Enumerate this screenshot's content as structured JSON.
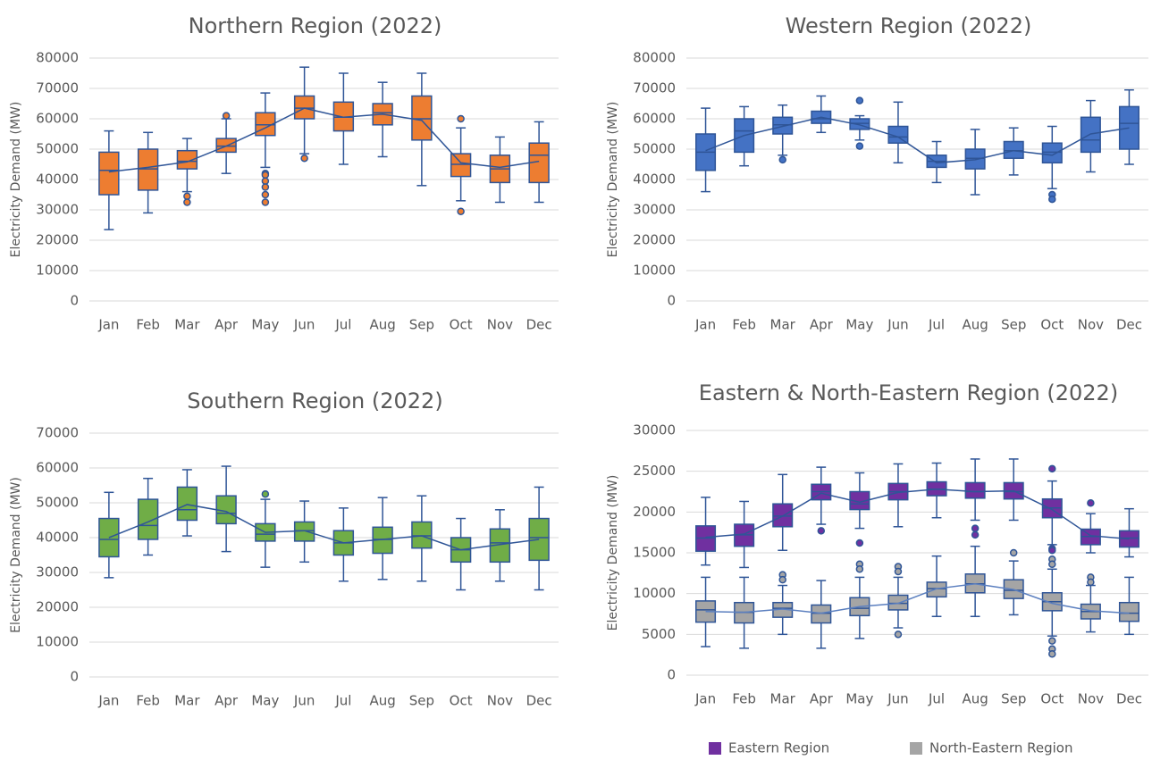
{
  "chart_data": [
    {
      "type": "box",
      "title": "Northern Region (2022)",
      "y_label": "Electricity Demand (MW)",
      "categories": [
        "Jan",
        "Feb",
        "Mar",
        "Apr",
        "May",
        "Jun",
        "Jul",
        "Aug",
        "Sep",
        "Oct",
        "Nov",
        "Dec"
      ],
      "ylim": [
        0,
        80000
      ],
      "yticks": [
        0,
        10000,
        20000,
        30000,
        40000,
        50000,
        60000,
        70000,
        80000
      ],
      "grid": true,
      "series": [
        {
          "color": "#ED7D31",
          "line_color": "#2F5597",
          "min": [
            23500,
            29000,
            36000,
            42000,
            44000,
            48500,
            45000,
            47500,
            38000,
            33000,
            32500,
            32500
          ],
          "q1": [
            35000,
            36500,
            43500,
            49000,
            54500,
            60000,
            56000,
            58000,
            53000,
            41000,
            39000,
            39000
          ],
          "median": [
            43000,
            43500,
            46000,
            51000,
            58000,
            63500,
            60500,
            62000,
            60000,
            45000,
            43500,
            48000
          ],
          "q3": [
            49000,
            50000,
            49500,
            53500,
            62000,
            67500,
            65500,
            65000,
            67500,
            48500,
            48000,
            52000
          ],
          "max": [
            56000,
            55500,
            53500,
            60000,
            68500,
            77000,
            75000,
            72000,
            75000,
            57000,
            54000,
            59000
          ],
          "mean": [
            42500,
            44000,
            45800,
            51000,
            57000,
            63500,
            60500,
            61500,
            59500,
            45500,
            44000,
            46000
          ],
          "outliers": [
            [],
            [],
            [
              34500,
              32500
            ],
            [
              61000
            ],
            [
              42000,
              41500,
              39500,
              37500,
              35000,
              32500
            ],
            [
              47000
            ],
            [],
            [],
            [],
            [
              60000,
              29500
            ],
            [],
            []
          ]
        }
      ]
    },
    {
      "type": "box",
      "title": "Western Region (2022)",
      "y_label": "Electricity Demand (MW)",
      "categories": [
        "Jan",
        "Feb",
        "Mar",
        "Apr",
        "May",
        "Jun",
        "Jul",
        "Aug",
        "Sep",
        "Oct",
        "Nov",
        "Dec"
      ],
      "ylim": [
        0,
        80000
      ],
      "yticks": [
        0,
        10000,
        20000,
        30000,
        40000,
        50000,
        60000,
        70000,
        80000
      ],
      "grid": true,
      "series": [
        {
          "color": "#4472C4",
          "line_color": "#2F5597",
          "min": [
            36000,
            44500,
            48000,
            55500,
            53000,
            45500,
            39000,
            35000,
            41500,
            37000,
            42500,
            45000
          ],
          "q1": [
            43000,
            49000,
            55000,
            58500,
            56500,
            52000,
            44000,
            43500,
            47000,
            45500,
            49000,
            50000
          ],
          "median": [
            49000,
            56000,
            58000,
            60000,
            58500,
            54000,
            46000,
            47000,
            49500,
            49000,
            53000,
            58500
          ],
          "q3": [
            55000,
            60000,
            60500,
            62500,
            60000,
            57500,
            48000,
            50000,
            52500,
            52000,
            60500,
            64000
          ],
          "max": [
            63500,
            64000,
            64500,
            67500,
            61000,
            65500,
            52500,
            56500,
            57000,
            57500,
            66000,
            69500
          ],
          "mean": [
            49500,
            54500,
            57500,
            60500,
            58000,
            54000,
            45500,
            46500,
            49500,
            48000,
            55000,
            57000
          ],
          "outliers": [
            [],
            [],
            [
              46500
            ],
            [],
            [
              66000,
              51000
            ],
            [],
            [],
            [],
            [],
            [
              35000,
              33500
            ],
            [],
            []
          ]
        }
      ]
    },
    {
      "type": "box",
      "title": "Southern Region (2022)",
      "y_label": "Electricity Demand (MW)",
      "categories": [
        "Jan",
        "Feb",
        "Mar",
        "Apr",
        "May",
        "Jun",
        "Jul",
        "Aug",
        "Sep",
        "Oct",
        "Nov",
        "Dec"
      ],
      "ylim": [
        0,
        70000
      ],
      "yticks": [
        0,
        10000,
        20000,
        30000,
        40000,
        50000,
        60000,
        70000
      ],
      "grid": true,
      "series": [
        {
          "color": "#70AD47",
          "line_color": "#2F5597",
          "min": [
            28500,
            35000,
            40500,
            36000,
            31500,
            33000,
            27500,
            28000,
            27500,
            25000,
            27500,
            25000
          ],
          "q1": [
            34500,
            39500,
            45000,
            44000,
            39000,
            39000,
            35000,
            35500,
            37000,
            33000,
            33000,
            33500
          ],
          "median": [
            39500,
            43500,
            48000,
            47000,
            41000,
            42000,
            38500,
            39500,
            40500,
            36500,
            38500,
            40000
          ],
          "q3": [
            45500,
            51000,
            54500,
            52000,
            44000,
            44500,
            42000,
            43000,
            44500,
            40000,
            42500,
            45500
          ],
          "max": [
            53000,
            57000,
            59500,
            60500,
            51000,
            50500,
            48500,
            51500,
            52000,
            45500,
            48000,
            54500
          ],
          "mean": [
            40000,
            44500,
            49500,
            47500,
            41500,
            42000,
            38500,
            39500,
            40500,
            36500,
            38000,
            39500
          ],
          "outliers": [
            [],
            [],
            [],
            [],
            [
              52500
            ],
            [],
            [],
            [],
            [],
            [],
            [],
            []
          ]
        }
      ]
    },
    {
      "type": "box",
      "title": "Eastern & North-Eastern Region (2022)",
      "y_label": "Electricity Demand (MW)",
      "categories": [
        "Jan",
        "Feb",
        "Mar",
        "Apr",
        "May",
        "Jun",
        "Jul",
        "Aug",
        "Sep",
        "Oct",
        "Nov",
        "Dec"
      ],
      "ylim": [
        0,
        30000
      ],
      "yticks": [
        0,
        5000,
        10000,
        15000,
        20000,
        25000,
        30000
      ],
      "grid": true,
      "legend": "bottom",
      "series": [
        {
          "name": "Eastern Region",
          "color": "#7030A0",
          "line_color": "#2F5597",
          "min": [
            13500,
            13200,
            15300,
            18500,
            18000,
            18200,
            19300,
            19000,
            19000,
            16000,
            15000,
            14500
          ],
          "q1": [
            15200,
            15800,
            18200,
            21500,
            20300,
            21500,
            22000,
            21700,
            21600,
            19300,
            16000,
            15700
          ],
          "median": [
            16800,
            17200,
            19500,
            22500,
            21000,
            22500,
            22800,
            22500,
            22500,
            20500,
            17000,
            16800
          ],
          "q3": [
            18300,
            18500,
            21000,
            23400,
            22500,
            23500,
            23700,
            23600,
            23600,
            21600,
            17900,
            17700
          ],
          "max": [
            21800,
            21300,
            24600,
            25500,
            24800,
            25900,
            26000,
            26500,
            26500,
            23800,
            19800,
            20400
          ],
          "mean": [
            16900,
            17300,
            19500,
            22300,
            21200,
            22400,
            22800,
            22500,
            22600,
            20300,
            17100,
            16700
          ],
          "outliers": [
            [],
            [],
            [],
            [
              17700
            ],
            [
              16200
            ],
            [],
            [],
            [
              18000,
              17200
            ],
            [],
            [
              25300,
              15500,
              15300
            ],
            [
              21100
            ],
            []
          ]
        },
        {
          "name": "North-Eastern Region",
          "color": "#A5A5A5",
          "line_color": "#5B7FBF",
          "min": [
            3500,
            3300,
            5000,
            3300,
            4500,
            5800,
            7200,
            7200,
            7400,
            4800,
            5300,
            5000
          ],
          "q1": [
            6500,
            6400,
            7100,
            6400,
            7300,
            8000,
            9600,
            10100,
            9400,
            7900,
            6900,
            6600
          ],
          "median": [
            8000,
            7700,
            8200,
            7600,
            8200,
            8800,
            10600,
            11200,
            10400,
            9000,
            7800,
            7600
          ],
          "q3": [
            9100,
            8900,
            8900,
            8600,
            9500,
            9800,
            11400,
            12400,
            11700,
            10100,
            8700,
            8900
          ],
          "max": [
            12000,
            12000,
            11000,
            11600,
            12000,
            12000,
            14600,
            15800,
            14000,
            13000,
            11000,
            12000
          ],
          "mean": [
            7800,
            7700,
            8100,
            7600,
            8400,
            8800,
            10600,
            11200,
            10500,
            8800,
            7900,
            7600
          ],
          "outliers": [
            [],
            [],
            [
              12300,
              11700
            ],
            [],
            [
              13600,
              13000
            ],
            [
              13300,
              12700,
              5000
            ],
            [],
            [],
            [
              15000
            ],
            [
              14200,
              13600,
              4200,
              3200,
              2600
            ],
            [
              12000,
              11400
            ],
            []
          ]
        }
      ]
    }
  ]
}
